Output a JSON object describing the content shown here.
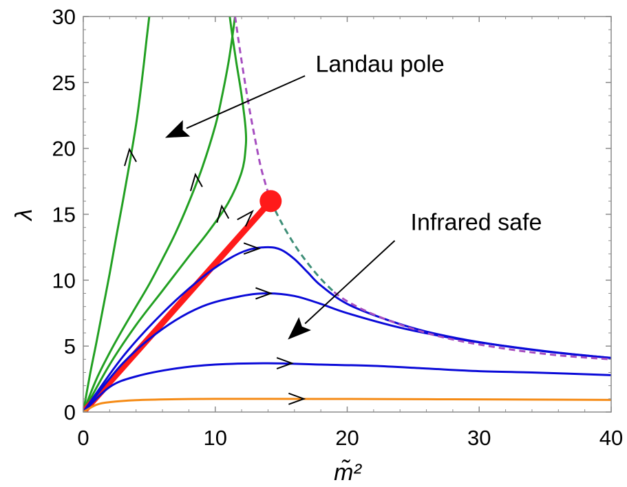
{
  "chart_data": {
    "type": "line",
    "xlabel": "m̃²",
    "ylabel": "λ",
    "xlim": [
      0,
      40
    ],
    "ylim": [
      0,
      30
    ],
    "xticks": [
      "0",
      "10",
      "20",
      "30",
      "40"
    ],
    "yticks": [
      "0",
      "5",
      "10",
      "15",
      "20",
      "25",
      "30"
    ],
    "grid": false,
    "legend": "none",
    "fixed_point": {
      "x": 14.2,
      "y": 16.0,
      "color": "#ff1a1a"
    },
    "series": [
      {
        "color": "#22a022",
        "style": "solid",
        "width": 3,
        "x": [
          0,
          0.5,
          1,
          1.5,
          2,
          2.5,
          3,
          3.5,
          4,
          4.3,
          4.6,
          4.8,
          5.0
        ],
        "y": [
          0,
          2.8,
          5.3,
          7.9,
          10.5,
          13.3,
          16.0,
          18.8,
          21.8,
          24.0,
          26.5,
          28.3,
          30
        ]
      },
      {
        "color": "#22a022",
        "style": "solid",
        "width": 3,
        "x": [
          0,
          1,
          2,
          3,
          4,
          5,
          6,
          7,
          8,
          9,
          10,
          10.5,
          11.0,
          11.3,
          11.5
        ],
        "y": [
          0,
          2.5,
          4.5,
          6.3,
          8.0,
          9.7,
          11.6,
          13.6,
          15.9,
          18.5,
          21.7,
          23.9,
          26.5,
          28.5,
          30
        ]
      },
      {
        "color": "#22a022",
        "style": "solid",
        "width": 3,
        "x": [
          0,
          2,
          4,
          6,
          8,
          9.5,
          11,
          12,
          12.3,
          12.3,
          12.0,
          11.6,
          11.3,
          11.1
        ],
        "y": [
          0,
          3.6,
          6.6,
          9.2,
          11.8,
          13.7,
          15.9,
          18.2,
          20.0,
          21.5,
          24.0,
          26.5,
          28.5,
          30
        ]
      },
      {
        "color": "#ff1a1a",
        "style": "solid",
        "width": 9,
        "x": [
          0,
          14.2
        ],
        "y": [
          0,
          16.0
        ]
      },
      {
        "color": "#0a0ad8",
        "style": "solid",
        "width": 3,
        "x": [
          0,
          3,
          6,
          9,
          11,
          12.5,
          14,
          15,
          16,
          17,
          18,
          20,
          23,
          26,
          30,
          35,
          40
        ],
        "y": [
          0,
          4.2,
          7.5,
          10.2,
          11.6,
          12.3,
          12.5,
          12.3,
          11.6,
          10.6,
          9.6,
          8.2,
          7.0,
          6.1,
          5.3,
          4.6,
          4.1
        ]
      },
      {
        "color": "#0a0ad8",
        "style": "solid",
        "width": 3,
        "x": [
          0,
          3,
          6,
          9,
          12,
          14,
          16,
          18,
          20,
          24,
          28,
          32,
          36,
          40
        ],
        "y": [
          0,
          3.7,
          6.3,
          8.0,
          8.8,
          9.0,
          8.8,
          8.2,
          7.5,
          6.4,
          5.6,
          5.0,
          4.5,
          4.1
        ]
      },
      {
        "color": "#0a0ad8",
        "style": "solid",
        "width": 3,
        "x": [
          0,
          2,
          4,
          7,
          10,
          14,
          18,
          22,
          26,
          30,
          34,
          40
        ],
        "y": [
          0,
          1.9,
          2.7,
          3.3,
          3.6,
          3.7,
          3.6,
          3.5,
          3.3,
          3.1,
          3.0,
          2.8
        ]
      },
      {
        "color": "#f58a14",
        "style": "solid",
        "width": 3,
        "x": [
          0,
          1,
          2,
          4,
          7,
          10,
          14,
          20,
          26,
          32,
          40
        ],
        "y": [
          0,
          0.55,
          0.75,
          0.9,
          0.97,
          1.0,
          1.0,
          0.99,
          0.97,
          0.95,
          0.92
        ]
      },
      {
        "color": "#a64ec0",
        "style": "dashed",
        "width": 3,
        "x": [
          11.5,
          12,
          12.5,
          13,
          13.5,
          14.2
        ],
        "y": [
          30,
          26.6,
          23.5,
          20.8,
          18.4,
          16.0
        ]
      },
      {
        "color": "#3f8f78",
        "style": "dashed",
        "width": 3,
        "x": [
          14.2,
          15,
          16,
          17,
          18,
          19
        ],
        "y": [
          16.0,
          14.4,
          12.7,
          11.3,
          10.1,
          9.1
        ]
      },
      {
        "color": "#a64ec0",
        "style": "dashed",
        "width": 3,
        "x": [
          19,
          20,
          22,
          25,
          28,
          32,
          36,
          40
        ],
        "y": [
          9.1,
          8.4,
          7.4,
          6.3,
          5.5,
          4.8,
          4.3,
          4.0
        ]
      }
    ],
    "flow_arrows": [
      {
        "x": 3.6,
        "y": 19.5,
        "dir": "up"
      },
      {
        "x": 8.6,
        "y": 17.6,
        "dir": "up"
      },
      {
        "x": 10.6,
        "y": 15.2,
        "dir": "up"
      },
      {
        "x": 12.4,
        "y": 14.7,
        "dir": "diag"
      },
      {
        "x": 13.1,
        "y": 12.4,
        "dir": "right"
      },
      {
        "x": 14.0,
        "y": 9.0,
        "dir": "right"
      },
      {
        "x": 15.6,
        "y": 3.7,
        "dir": "right"
      },
      {
        "x": 16.5,
        "y": 1.0,
        "dir": "right"
      }
    ],
    "annotations": [
      {
        "text": "Landau pole",
        "x": 17.6,
        "y": 25.8,
        "arrow_from": [
          16.8,
          25.5
        ],
        "arrow_to": [
          6.2,
          20.8
        ]
      },
      {
        "text": "Infrared safe",
        "x": 24.8,
        "y": 13.8,
        "arrow_from": [
          23.6,
          13.0
        ],
        "arrow_to": [
          15.5,
          5.5
        ]
      }
    ]
  }
}
